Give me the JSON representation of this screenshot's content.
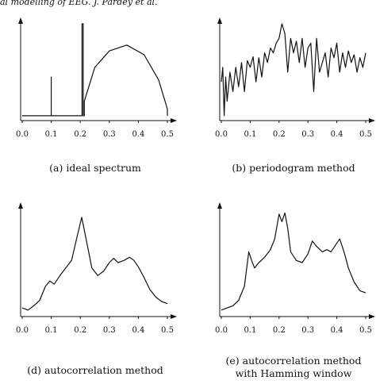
{
  "page": {
    "header": "al modelling of EEG. J. Pardey et al."
  },
  "chart_data": [
    {
      "type": "line",
      "caption": "(a) ideal spectrum",
      "xticks": [
        "0.0",
        "0.1",
        "0.2",
        "0.3",
        "0.4",
        "0.5"
      ],
      "xlim": [
        0,
        0.5
      ],
      "ylim": [
        0,
        1.0
      ],
      "series": [
        {
          "x": [
            0.0,
            0.1,
            0.1,
            0.1,
            0.1,
            0.206,
            0.206,
            0.21,
            0.21,
            0.214,
            0.214,
            0.25,
            0.3,
            0.36,
            0.42,
            0.47,
            0.5,
            0.5
          ],
          "y": [
            0.05,
            0.05,
            0.45,
            0.45,
            0.05,
            0.05,
            1.0,
            1.0,
            0.05,
            0.05,
            0.2,
            0.55,
            0.72,
            0.78,
            0.68,
            0.42,
            0.12,
            0.05
          ]
        }
      ]
    },
    {
      "type": "line",
      "caption": "(b) periodogram method",
      "xticks": [
        "0.0",
        "0.1",
        "0.2",
        "0.3",
        "0.4",
        "0.5"
      ],
      "xlim": [
        0,
        0.5
      ],
      "ylim": [
        0,
        1.0
      ],
      "series": [
        {
          "x": [
            0.0,
            0.005,
            0.01,
            0.015,
            0.02,
            0.03,
            0.04,
            0.05,
            0.06,
            0.07,
            0.08,
            0.09,
            0.1,
            0.11,
            0.12,
            0.13,
            0.14,
            0.15,
            0.16,
            0.17,
            0.18,
            0.19,
            0.2,
            0.21,
            0.22,
            0.23,
            0.24,
            0.25,
            0.26,
            0.27,
            0.28,
            0.29,
            0.3,
            0.31,
            0.32,
            0.33,
            0.34,
            0.35,
            0.36,
            0.37,
            0.38,
            0.39,
            0.4,
            0.41,
            0.42,
            0.43,
            0.44,
            0.45,
            0.46,
            0.47,
            0.48,
            0.49,
            0.5
          ],
          "y": [
            0.4,
            0.55,
            0.05,
            0.45,
            0.2,
            0.5,
            0.3,
            0.55,
            0.35,
            0.6,
            0.3,
            0.62,
            0.55,
            0.66,
            0.4,
            0.65,
            0.45,
            0.7,
            0.6,
            0.75,
            0.7,
            0.8,
            0.85,
            1.0,
            0.9,
            0.5,
            0.85,
            0.7,
            0.82,
            0.6,
            0.85,
            0.55,
            0.75,
            0.8,
            0.3,
            0.85,
            0.5,
            0.6,
            0.7,
            0.45,
            0.75,
            0.65,
            0.8,
            0.5,
            0.7,
            0.55,
            0.72,
            0.6,
            0.68,
            0.5,
            0.65,
            0.55,
            0.7
          ]
        }
      ]
    },
    {
      "type": "line",
      "caption": "(d) autocorrelation method",
      "xticks": [
        "0.0",
        "0.1",
        "0.2",
        "0.3",
        "0.4",
        "0.5"
      ],
      "xlim": [
        0,
        0.5
      ],
      "ylim": [
        0,
        1.0
      ],
      "series": [
        {
          "x": [
            0.0,
            0.02,
            0.04,
            0.06,
            0.08,
            0.095,
            0.11,
            0.13,
            0.15,
            0.17,
            0.19,
            0.205,
            0.22,
            0.24,
            0.26,
            0.28,
            0.3,
            0.315,
            0.33,
            0.35,
            0.37,
            0.385,
            0.4,
            0.42,
            0.44,
            0.46,
            0.48,
            0.5
          ],
          "y": [
            0.08,
            0.06,
            0.1,
            0.15,
            0.28,
            0.33,
            0.3,
            0.38,
            0.45,
            0.52,
            0.75,
            0.92,
            0.72,
            0.45,
            0.38,
            0.42,
            0.5,
            0.54,
            0.5,
            0.52,
            0.55,
            0.52,
            0.46,
            0.36,
            0.25,
            0.18,
            0.14,
            0.12
          ]
        }
      ]
    },
    {
      "type": "line",
      "caption": "(e) autocorrelation method",
      "caption2": "with Hamming window",
      "xticks": [
        "0.0",
        "0.1",
        "0.2",
        "0.3",
        "0.4",
        "0.5"
      ],
      "xlim": [
        0,
        0.5
      ],
      "ylim": [
        0,
        1.0
      ],
      "series": [
        {
          "x": [
            0.0,
            0.02,
            0.04,
            0.06,
            0.08,
            0.095,
            0.105,
            0.115,
            0.13,
            0.15,
            0.17,
            0.185,
            0.2,
            0.21,
            0.22,
            0.23,
            0.24,
            0.26,
            0.28,
            0.3,
            0.315,
            0.33,
            0.35,
            0.365,
            0.38,
            0.395,
            0.41,
            0.425,
            0.44,
            0.46,
            0.48,
            0.5
          ],
          "y": [
            0.06,
            0.08,
            0.1,
            0.15,
            0.28,
            0.6,
            0.52,
            0.45,
            0.5,
            0.55,
            0.62,
            0.72,
            0.95,
            0.88,
            0.96,
            0.82,
            0.6,
            0.52,
            0.5,
            0.58,
            0.7,
            0.65,
            0.6,
            0.62,
            0.6,
            0.66,
            0.72,
            0.6,
            0.45,
            0.32,
            0.24,
            0.22
          ]
        }
      ]
    }
  ]
}
